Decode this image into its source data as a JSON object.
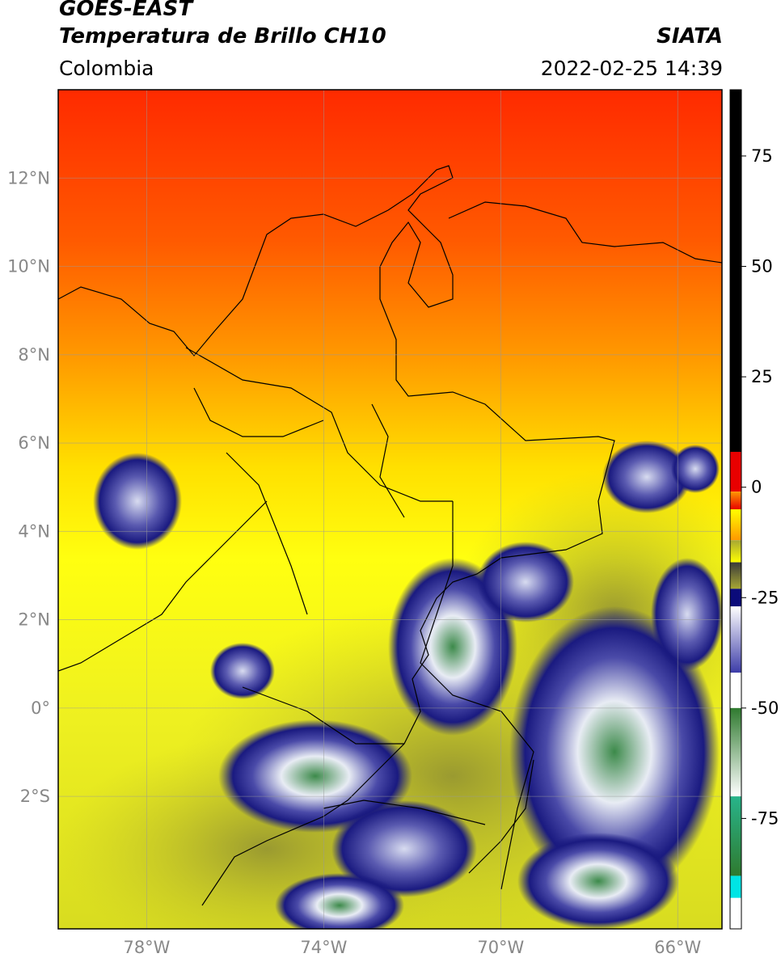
{
  "header": {
    "satellite": "GOES-EAST",
    "product": "Temperatura de Brillo CH10",
    "brand": "SIATA",
    "region": "Colombia",
    "datetime": "2022-02-25 14:39"
  },
  "map": {
    "lon_range": [
      -80,
      -65
    ],
    "lat_range": [
      -5,
      14
    ],
    "lat_ticks": [
      {
        "value": 12,
        "label": "12°N"
      },
      {
        "value": 10,
        "label": "10°N"
      },
      {
        "value": 8,
        "label": "8°N"
      },
      {
        "value": 6,
        "label": "6°N"
      },
      {
        "value": 4,
        "label": "4°N"
      },
      {
        "value": 2,
        "label": "2°N"
      },
      {
        "value": 0,
        "label": "0°"
      },
      {
        "value": -2,
        "label": "2°S"
      }
    ],
    "lon_ticks": [
      {
        "value": -78,
        "label": "78°W"
      },
      {
        "value": -74,
        "label": "74°W"
      },
      {
        "value": -70,
        "label": "70°W"
      },
      {
        "value": -66,
        "label": "66°W"
      }
    ]
  },
  "colorbar": {
    "range": [
      -100,
      90
    ],
    "ticks": [
      {
        "value": 75,
        "label": "75"
      },
      {
        "value": 50,
        "label": "50"
      },
      {
        "value": 25,
        "label": "25"
      },
      {
        "value": 0,
        "label": "0"
      },
      {
        "value": -25,
        "label": "-25"
      },
      {
        "value": -50,
        "label": "-50"
      },
      {
        "value": -75,
        "label": "-75"
      }
    ],
    "colors": {
      "black": "#000000",
      "red": "#e80000",
      "orange": "#ff9800",
      "yellow": "#ffff00",
      "olive": "#a7a734",
      "gray": "#3a3a3a",
      "navy": "#0b0b7a",
      "blue": "#3c3ca8",
      "white": "#ffffff",
      "green": "#2f7a2f",
      "teal": "#28b48a",
      "cyan": "#00e5e5"
    }
  }
}
